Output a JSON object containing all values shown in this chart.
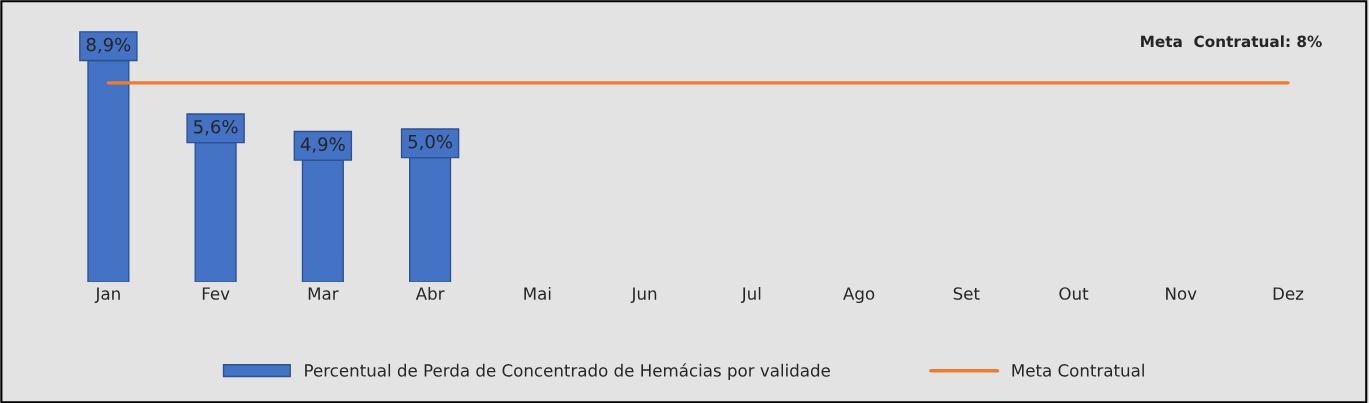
{
  "chart_data": {
    "type": "bar",
    "categories": [
      "Jan",
      "Fev",
      "Mar",
      "Abr",
      "Mai",
      "Jun",
      "Jul",
      "Ago",
      "Set",
      "Out",
      "Nov",
      "Dez"
    ],
    "series": [
      {
        "name": "Percentual de Perda de Concentrado de Hemácias por validade",
        "color": "#4472c4",
        "values": [
          8.9,
          5.6,
          4.9,
          5.0,
          null,
          null,
          null,
          null,
          null,
          null,
          null,
          null
        ],
        "value_labels": [
          "8,9%",
          "5,6%",
          "4,9%",
          "5,0%",
          null,
          null,
          null,
          null,
          null,
          null,
          null,
          null
        ]
      },
      {
        "name": "Meta Contratual",
        "type": "line",
        "color": "#ed7d31",
        "values": [
          8,
          8,
          8,
          8,
          8,
          8,
          8,
          8,
          8,
          8,
          8,
          8
        ]
      }
    ],
    "annotations": [
      "Meta  Contratual: 8%"
    ],
    "tick_labels": "x",
    "grid": false,
    "legend": "bottom",
    "marker": "none"
  }
}
